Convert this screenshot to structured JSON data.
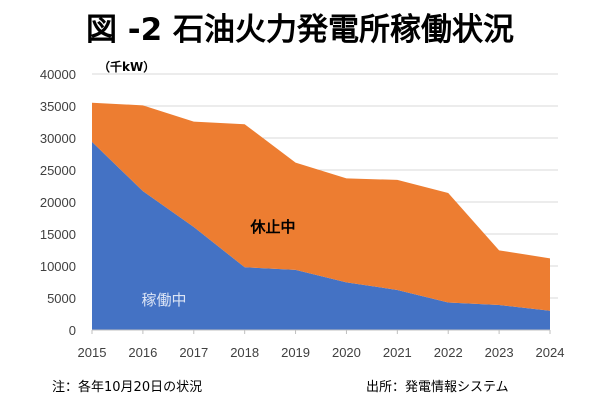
{
  "chart_data": {
    "type": "area",
    "stacked": true,
    "title": "図 -2 石油火力発電所稼働状況",
    "ylabel": "（千kW）",
    "xlabel": "",
    "x": [
      "2015",
      "2016",
      "2017",
      "2018",
      "2019",
      "2020",
      "2021",
      "2022",
      "2023",
      "2024"
    ],
    "ylim": [
      0,
      40000
    ],
    "yticks": [
      "0",
      "5000",
      "10000",
      "15000",
      "20000",
      "25000",
      "30000",
      "35000",
      "40000"
    ],
    "grid": true,
    "series": [
      {
        "name": "稼働中",
        "color": "#4472C4",
        "values": [
          29400,
          21700,
          16100,
          9800,
          9400,
          7450,
          6250,
          4300,
          3900,
          3000
        ]
      },
      {
        "name": "休止中",
        "color": "#ED7D31",
        "values": [
          6100,
          13400,
          16450,
          22350,
          16750,
          16250,
          17200,
          17100,
          8550,
          8200
        ]
      }
    ],
    "annotations": [
      "稼働中",
      "休止中"
    ]
  },
  "footer": {
    "note": "注：各年10月20日の状況",
    "source": "出所：発電情報システム"
  }
}
